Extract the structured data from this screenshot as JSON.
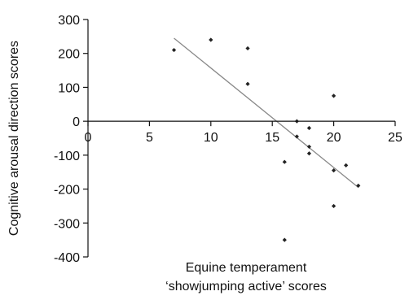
{
  "chart_data": {
    "type": "scatter",
    "title": "",
    "xlabel_line1": "Equine temperament",
    "xlabel_line2": "‘showjumping active’ scores",
    "ylabel": "Cognitive arousal direction scores",
    "xlim": [
      0,
      25
    ],
    "ylim": [
      -400,
      300
    ],
    "xticks": [
      0,
      5,
      10,
      15,
      20,
      25
    ],
    "yticks": [
      300,
      200,
      100,
      0,
      -100,
      -200,
      -300,
      -400
    ],
    "grid": false,
    "legend": "none",
    "points": [
      {
        "x": 7,
        "y": 210
      },
      {
        "x": 10,
        "y": 240
      },
      {
        "x": 13,
        "y": 215
      },
      {
        "x": 13,
        "y": 110
      },
      {
        "x": 16,
        "y": -120
      },
      {
        "x": 16,
        "y": -350
      },
      {
        "x": 17,
        "y": 0
      },
      {
        "x": 17,
        "y": -45
      },
      {
        "x": 18,
        "y": -20
      },
      {
        "x": 18,
        "y": -75
      },
      {
        "x": 18,
        "y": -95
      },
      {
        "x": 20,
        "y": 75
      },
      {
        "x": 20,
        "y": -145
      },
      {
        "x": 20,
        "y": -250
      },
      {
        "x": 21,
        "y": -130
      },
      {
        "x": 22,
        "y": -190
      }
    ],
    "trendline": {
      "x": [
        7,
        22
      ],
      "y": [
        245,
        -195
      ]
    },
    "point_color": "#222222",
    "line_color": "#888888"
  }
}
